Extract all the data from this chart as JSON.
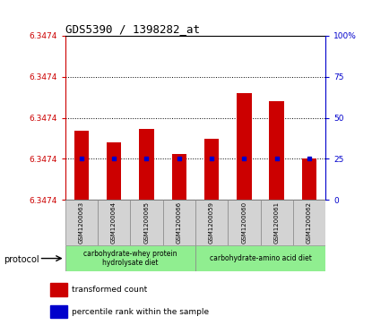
{
  "title": "GDS5390 / 1398282_at",
  "samples": [
    "GSM1200063",
    "GSM1200064",
    "GSM1200065",
    "GSM1200066",
    "GSM1200059",
    "GSM1200060",
    "GSM1200061",
    "GSM1200062"
  ],
  "bar_heights_pct": [
    42,
    35,
    43,
    28,
    37,
    65,
    60,
    25
  ],
  "percentile_rank_pct": 25,
  "bar_color": "#cc0000",
  "percentile_color": "#0000cc",
  "left_axis_color": "#cc0000",
  "right_axis_color": "#0000cc",
  "group1_label": "carbohydrate-whey protein\nhydrolysate diet",
  "group2_label": "carbohydrate-amino acid diet",
  "group1_count": 4,
  "group2_count": 4,
  "group_bg_color": "#90ee90",
  "sample_bg_color": "#d3d3d3",
  "protocol_label": "protocol",
  "legend_transformed": "transformed count",
  "legend_percentile": "percentile rank within the sample",
  "ytick_label": "6.3474",
  "right_yticks": [
    0,
    25,
    50,
    75,
    100
  ],
  "right_ytick_labels": [
    "0",
    "25",
    "50",
    "75",
    "100%"
  ]
}
